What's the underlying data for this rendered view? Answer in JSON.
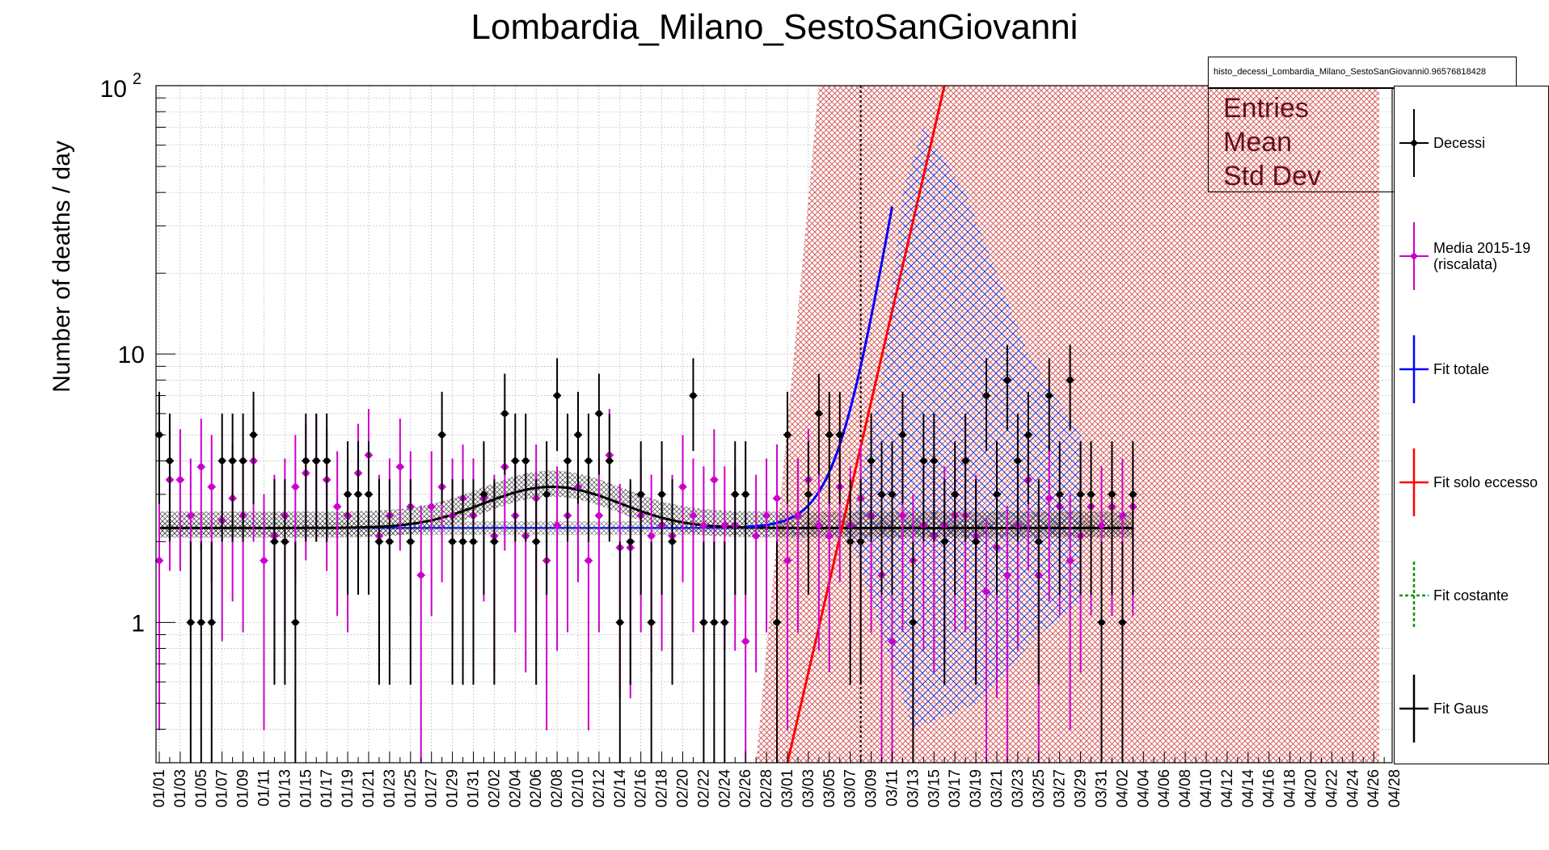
{
  "chart_data": {
    "type": "scatter",
    "title": "Lombardia_Milano_SestoSanGiovanni",
    "ylabel": "Number of deaths / day",
    "xlabel": "",
    "y_scale": "log",
    "ylim": [
      0.3,
      100
    ],
    "y_tick_labels": [
      "1",
      "10"
    ],
    "y_tick_top_base": "10",
    "y_tick_top_exp": "2",
    "grid": true,
    "x_tick_labels": [
      "01/01",
      "01/03",
      "01/05",
      "01/07",
      "01/09",
      "01/11",
      "01/13",
      "01/15",
      "01/17",
      "01/19",
      "01/21",
      "01/23",
      "01/25",
      "01/27",
      "01/29",
      "01/31",
      "02/02",
      "02/04",
      "02/06",
      "02/08",
      "02/10",
      "02/12",
      "02/14",
      "02/16",
      "02/18",
      "02/20",
      "02/22",
      "02/24",
      "02/26",
      "02/28",
      "03/01",
      "03/03",
      "03/05",
      "03/07",
      "03/09",
      "03/11",
      "03/13",
      "03/15",
      "03/17",
      "03/19",
      "03/21",
      "03/23",
      "03/25",
      "03/27",
      "03/29",
      "03/31",
      "04/02",
      "04/04",
      "04/06",
      "04/08",
      "04/10",
      "04/12",
      "04/14",
      "04/16",
      "04/18",
      "04/20",
      "04/22",
      "04/24",
      "04/26",
      "04/28"
    ],
    "vertical_marker_day": 67,
    "stats_box": {
      "name": "histo_decessi_Lombardia_Milano_SestoSanGiovanni0.96576818428",
      "rows": [
        "Entries",
        "Mean",
        "Std Dev"
      ]
    },
    "legend": [
      "Decessi",
      "Media 2015-19\n(riscalata)",
      "Fit totale",
      "Fit solo eccesso",
      "Fit costante",
      "Fit Gaus"
    ],
    "colors": {
      "decessi": "#000000",
      "media": "#cc00cc",
      "fit_totale": "#0000ff",
      "fit_eccesso": "#ff0000",
      "fit_costante": "#009900",
      "fit_gaus": "#000000",
      "excess_band": "#cc3333"
    },
    "series": [
      {
        "name": "Decessi",
        "x": [
          0,
          1,
          2,
          3,
          4,
          5,
          6,
          7,
          8,
          9,
          10,
          11,
          12,
          13,
          14,
          15,
          16,
          17,
          18,
          19,
          20,
          21,
          22,
          23,
          24,
          25,
          26,
          27,
          28,
          29,
          30,
          31,
          32,
          33,
          34,
          35,
          36,
          37,
          38,
          39,
          40,
          41,
          42,
          43,
          44,
          45,
          46,
          47,
          48,
          49,
          50,
          51,
          52,
          53,
          54,
          55,
          56,
          57,
          58,
          59,
          60,
          61,
          62,
          63,
          64,
          65,
          66,
          67,
          68,
          69,
          70,
          71,
          72,
          73,
          74,
          75,
          76,
          77,
          78,
          79,
          80,
          81,
          82,
          83,
          84,
          85,
          86,
          87,
          88,
          89,
          90,
          91,
          92,
          93
        ],
        "y": [
          5,
          4,
          0,
          1,
          1,
          1,
          4,
          4,
          4,
          5,
          0,
          2,
          2,
          1,
          4,
          4,
          4,
          0,
          3,
          3,
          3,
          2,
          2,
          0,
          2,
          0,
          0,
          5,
          2,
          2,
          2,
          3,
          2,
          6,
          4,
          4,
          2,
          3,
          7,
          4,
          5,
          4,
          6,
          4,
          1,
          2,
          3,
          1,
          3,
          2,
          0,
          7,
          1,
          1,
          1,
          3,
          3,
          0,
          0,
          1,
          5,
          0,
          3,
          6,
          5,
          5,
          2,
          2,
          4,
          3,
          3,
          5,
          1,
          4,
          4,
          2,
          3,
          4,
          2,
          7,
          3,
          8,
          4,
          5,
          2,
          7,
          3,
          8,
          3,
          3,
          1,
          3,
          1,
          3
        ]
      },
      {
        "name": "Media 2015-19\n(riscalata)",
        "x": [
          0,
          1,
          2,
          3,
          4,
          5,
          6,
          7,
          8,
          9,
          10,
          11,
          12,
          13,
          14,
          15,
          16,
          17,
          18,
          19,
          20,
          21,
          22,
          23,
          24,
          25,
          26,
          27,
          28,
          29,
          30,
          31,
          32,
          33,
          34,
          35,
          36,
          37,
          38,
          39,
          40,
          41,
          42,
          43,
          44,
          45,
          46,
          47,
          48,
          49,
          50,
          51,
          52,
          53,
          54,
          55,
          56,
          57,
          58,
          59,
          60,
          61,
          62,
          63,
          64,
          65,
          66,
          67,
          68,
          69,
          70,
          71,
          72,
          73,
          74,
          75,
          76,
          77,
          78,
          79,
          80,
          81,
          82,
          83,
          84,
          85,
          86,
          87,
          88,
          89,
          90,
          91,
          92,
          93
        ],
        "y": [
          1.7,
          3.4,
          3.4,
          2.5,
          3.8,
          3.2,
          2.4,
          2.9,
          2.5,
          4,
          1.7,
          2.1,
          2.5,
          3.2,
          3.6,
          4,
          3.4,
          2.7,
          2.5,
          3.6,
          4.2,
          2.1,
          2.5,
          3.8,
          2.7,
          1.5,
          2.7,
          3.2,
          2.5,
          2.9,
          2.5,
          2.9,
          2.1,
          3.8,
          2.5,
          2.1,
          2.9,
          1.7,
          2.3,
          2.5,
          3.2,
          1.7,
          2.5,
          4.2,
          1.9,
          1.9,
          2.5,
          2.1,
          2.3,
          2.1,
          3.2,
          2.5,
          2.3,
          3.4,
          2.3,
          2.3,
          0.85,
          2.1,
          2.5,
          2.9,
          1.7,
          2.5,
          3.4,
          2.3,
          2.1,
          3.2,
          2.3,
          2.9,
          2.5,
          1.5,
          0.85,
          2.5,
          1.7,
          2.3,
          2.1,
          2.3,
          2.5,
          2.5,
          2.1,
          1.3,
          1.9,
          1.5,
          2.3,
          3.4,
          1.5,
          2.9,
          2.7,
          1.7,
          2.1,
          2.7,
          2.3,
          2.7,
          2.5,
          2.7
        ]
      }
    ],
    "fit_constant": 2.25,
    "fit_gaus": {
      "amplitude": 0.95,
      "mean": 37.5,
      "sigma": 6
    },
    "fit_eccesso": {
      "x0": 61,
      "y0": 0.3,
      "slope_per_day": 0.58
    }
  }
}
